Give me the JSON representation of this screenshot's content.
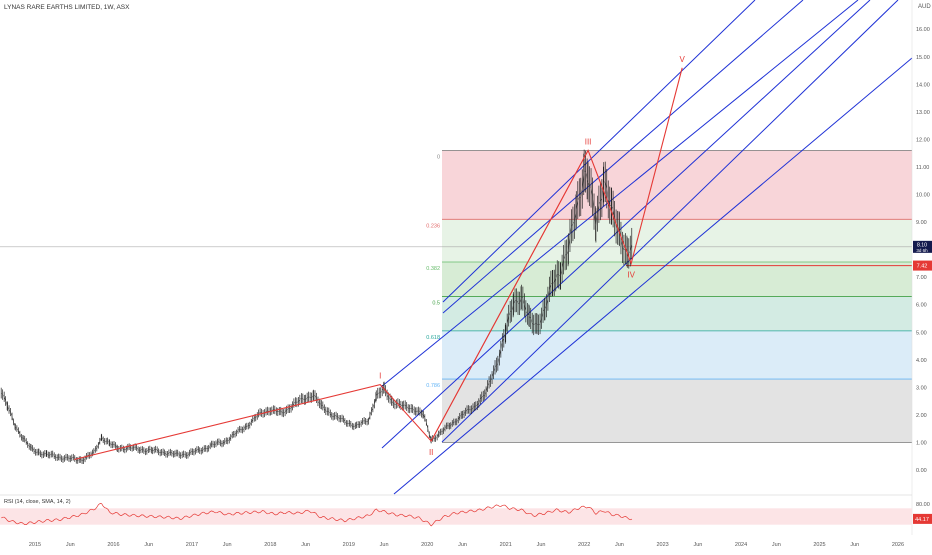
{
  "chart_data": {
    "type": "line",
    "title": "LYNAS RARE EARTHS LIMITED, 1W, ASX",
    "currency": "AUD",
    "y_ticks": [
      "16.00",
      "15.00",
      "14.00",
      "13.00",
      "12.00",
      "11.00",
      "10.00",
      "9.00",
      "8.00",
      "7.00",
      "6.00",
      "5.00",
      "4.00",
      "3.00",
      "2.00",
      "1.00",
      "0.00"
    ],
    "x_ticks": [
      "2015",
      "Jun",
      "2016",
      "Jun",
      "2017",
      "Jun",
      "2018",
      "Jun",
      "2019",
      "Jun",
      "2020",
      "Jun",
      "2021",
      "Jun",
      "2022",
      "Jun",
      "2023",
      "Jun",
      "2024",
      "Jun",
      "2025",
      "Jun",
      "2026"
    ],
    "current_price_label": "8.10",
    "current_time_label": "3d 6h",
    "horizontal_level_label": "7.42",
    "horizontal_level": 7.42,
    "current_price": 8.1,
    "fib_levels": [
      {
        "label": "0",
        "value": 11.6,
        "fill": "#f8d5d9",
        "color": "#888888"
      },
      {
        "label": "0.236",
        "value": 9.1,
        "fill": "#e7f3e6",
        "color": "#e26a6a"
      },
      {
        "label": "0.382",
        "value": 7.55,
        "fill": "#d7ecd5",
        "color": "#66bb6a"
      },
      {
        "label": "0.5",
        "value": 6.3,
        "fill": "#d3ebe3",
        "color": "#43a047"
      },
      {
        "label": "0.618",
        "value": 5.05,
        "fill": "#dbecf8",
        "color": "#26a69a"
      },
      {
        "label": "0.786",
        "value": 3.3,
        "fill": "#e3e3e3",
        "color": "#64b5f6"
      },
      {
        "label": "",
        "value": 1.0,
        "fill": "",
        "color": "#888888"
      }
    ],
    "wave_labels": [
      {
        "label": "I",
        "x": 2019.4,
        "y": 3.1
      },
      {
        "label": "II",
        "x": 2020.05,
        "y": 1.05
      },
      {
        "label": "III",
        "x": 2022.05,
        "y": 11.6
      },
      {
        "label": "IV",
        "x": 2022.6,
        "y": 7.5
      },
      {
        "label": "V",
        "x": 2023.25,
        "y": 14.6
      }
    ],
    "wave_path": [
      {
        "x": 2015.5,
        "y": 0.38
      },
      {
        "x": 2019.4,
        "y": 3.1
      },
      {
        "x": 2020.05,
        "y": 1.05
      },
      {
        "x": 2022.05,
        "y": 11.6
      },
      {
        "x": 2022.6,
        "y": 7.5
      },
      {
        "x": 2023.25,
        "y": 14.6
      }
    ],
    "price_series": [
      [
        2014.55,
        3.0
      ],
      [
        2014.65,
        2.3
      ],
      [
        2014.75,
        1.6
      ],
      [
        2014.85,
        1.15
      ],
      [
        2014.95,
        0.75
      ],
      [
        2015.05,
        0.65
      ],
      [
        2015.15,
        0.55
      ],
      [
        2015.3,
        0.48
      ],
      [
        2015.45,
        0.4
      ],
      [
        2015.6,
        0.38
      ],
      [
        2015.75,
        0.6
      ],
      [
        2015.85,
        1.2
      ],
      [
        2015.95,
        0.95
      ],
      [
        2016.05,
        0.8
      ],
      [
        2016.2,
        0.8
      ],
      [
        2016.35,
        0.75
      ],
      [
        2016.5,
        0.7
      ],
      [
        2016.65,
        0.65
      ],
      [
        2016.8,
        0.55
      ],
      [
        2016.95,
        0.6
      ],
      [
        2017.1,
        0.7
      ],
      [
        2017.25,
        0.9
      ],
      [
        2017.4,
        1.0
      ],
      [
        2017.55,
        1.3
      ],
      [
        2017.7,
        1.6
      ],
      [
        2017.85,
        2.0
      ],
      [
        2018.0,
        2.2
      ],
      [
        2018.15,
        2.05
      ],
      [
        2018.3,
        2.4
      ],
      [
        2018.45,
        2.6
      ],
      [
        2018.55,
        2.75
      ],
      [
        2018.65,
        2.3
      ],
      [
        2018.8,
        2.0
      ],
      [
        2018.95,
        1.75
      ],
      [
        2019.1,
        1.6
      ],
      [
        2019.25,
        1.8
      ],
      [
        2019.35,
        2.7
      ],
      [
        2019.45,
        2.9
      ],
      [
        2019.55,
        2.5
      ],
      [
        2019.7,
        2.3
      ],
      [
        2019.85,
        2.2
      ],
      [
        2019.95,
        2.0
      ],
      [
        2020.05,
        1.1
      ],
      [
        2020.15,
        1.3
      ],
      [
        2020.3,
        1.65
      ],
      [
        2020.45,
        2.0
      ],
      [
        2020.6,
        2.3
      ],
      [
        2020.75,
        2.8
      ],
      [
        2020.9,
        4.0
      ],
      [
        2021.0,
        5.0
      ],
      [
        2021.1,
        6.1
      ],
      [
        2021.2,
        6.3
      ],
      [
        2021.3,
        5.4
      ],
      [
        2021.4,
        5.3
      ],
      [
        2021.5,
        5.8
      ],
      [
        2021.6,
        6.8
      ],
      [
        2021.7,
        7.3
      ],
      [
        2021.8,
        8.0
      ],
      [
        2021.9,
        9.5
      ],
      [
        2022.0,
        10.8
      ],
      [
        2022.05,
        10.5
      ],
      [
        2022.15,
        9.0
      ],
      [
        2022.25,
        10.6
      ],
      [
        2022.35,
        9.3
      ],
      [
        2022.45,
        8.7
      ],
      [
        2022.55,
        7.8
      ],
      [
        2022.62,
        8.1
      ]
    ],
    "rsi": {
      "label": "RSI (14, close, SMA, 14, 2)",
      "ticks": [
        "80.00",
        "40.00"
      ],
      "current_label": "44.17",
      "current": 44.17,
      "band": [
        30,
        70
      ],
      "series": [
        [
          2014.55,
          50
        ],
        [
          2014.7,
          38
        ],
        [
          2014.85,
          32
        ],
        [
          2015.0,
          36
        ],
        [
          2015.15,
          40
        ],
        [
          2015.3,
          42
        ],
        [
          2015.45,
          48
        ],
        [
          2015.6,
          55
        ],
        [
          2015.75,
          68
        ],
        [
          2015.85,
          82
        ],
        [
          2015.95,
          60
        ],
        [
          2016.1,
          55
        ],
        [
          2016.3,
          52
        ],
        [
          2016.5,
          50
        ],
        [
          2016.7,
          48
        ],
        [
          2016.85,
          45
        ],
        [
          2017.0,
          52
        ],
        [
          2017.15,
          58
        ],
        [
          2017.3,
          62
        ],
        [
          2017.45,
          55
        ],
        [
          2017.6,
          58
        ],
        [
          2017.75,
          60
        ],
        [
          2017.9,
          62
        ],
        [
          2018.05,
          56
        ],
        [
          2018.2,
          60
        ],
        [
          2018.35,
          58
        ],
        [
          2018.5,
          64
        ],
        [
          2018.65,
          48
        ],
        [
          2018.8,
          44
        ],
        [
          2018.95,
          40
        ],
        [
          2019.1,
          46
        ],
        [
          2019.25,
          52
        ],
        [
          2019.35,
          66
        ],
        [
          2019.45,
          62
        ],
        [
          2019.6,
          54
        ],
        [
          2019.75,
          52
        ],
        [
          2019.9,
          46
        ],
        [
          2020.05,
          30
        ],
        [
          2020.2,
          48
        ],
        [
          2020.35,
          58
        ],
        [
          2020.5,
          62
        ],
        [
          2020.65,
          65
        ],
        [
          2020.8,
          72
        ],
        [
          2020.95,
          78
        ],
        [
          2021.05,
          70
        ],
        [
          2021.2,
          66
        ],
        [
          2021.35,
          52
        ],
        [
          2021.5,
          58
        ],
        [
          2021.65,
          66
        ],
        [
          2021.8,
          60
        ],
        [
          2021.95,
          72
        ],
        [
          2022.05,
          74
        ],
        [
          2022.15,
          58
        ],
        [
          2022.25,
          64
        ],
        [
          2022.35,
          55
        ],
        [
          2022.45,
          52
        ],
        [
          2022.55,
          46
        ],
        [
          2022.62,
          44
        ]
      ]
    }
  }
}
